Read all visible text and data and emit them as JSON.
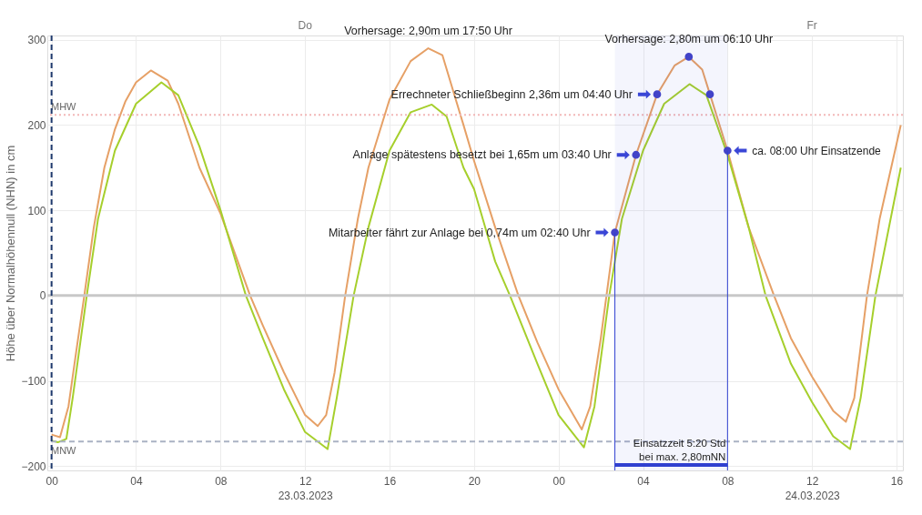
{
  "chart_data": {
    "type": "line",
    "ylabel": "Höhe über Normalhöhennull (NHN) in cm",
    "xlim": [
      "2023-03-22T23:48",
      "2023-03-24T16:18"
    ],
    "ylim": [
      -205,
      305
    ],
    "xticks": [
      {
        "value": "2023-03-23T00:00",
        "label": "00"
      },
      {
        "value": "2023-03-23T04:00",
        "label": "04"
      },
      {
        "value": "2023-03-23T08:00",
        "label": "08"
      },
      {
        "value": "2023-03-23T12:00",
        "label": "12\n23.03.2023"
      },
      {
        "value": "2023-03-23T16:00",
        "label": "16"
      },
      {
        "value": "2023-03-23T20:00",
        "label": "20"
      },
      {
        "value": "2023-03-24T00:00",
        "label": "00"
      },
      {
        "value": "2023-03-24T04:00",
        "label": "04"
      },
      {
        "value": "2023-03-24T08:00",
        "label": "08"
      },
      {
        "value": "2023-03-24T12:00",
        "label": "12\n24.03.2023"
      },
      {
        "value": "2023-03-24T16:00",
        "label": "16"
      }
    ],
    "yticks": [
      -200,
      -100,
      0,
      100,
      200,
      300
    ],
    "grid": true,
    "series": [
      {
        "color": "#e6a066",
        "x": [
          "2023-03-23T00:00",
          "2023-03-23T00:24",
          "2023-03-23T00:48",
          "2023-03-23T01:12",
          "2023-03-23T01:33",
          "2023-03-23T02:00",
          "2023-03-23T02:30",
          "2023-03-23T03:00",
          "2023-03-23T03:30",
          "2023-03-23T04:00",
          "2023-03-23T04:42",
          "2023-03-23T05:30",
          "2023-03-23T06:00",
          "2023-03-23T07:00",
          "2023-03-23T08:00",
          "2023-03-23T09:24",
          "2023-03-23T10:00",
          "2023-03-23T11:00",
          "2023-03-23T12:00",
          "2023-03-23T12:36",
          "2023-03-23T13:00",
          "2023-03-23T13:24",
          "2023-03-23T13:54",
          "2023-03-23T14:30",
          "2023-03-23T15:00",
          "2023-03-23T16:00",
          "2023-03-23T17:00",
          "2023-03-23T17:50",
          "2023-03-23T18:30",
          "2023-03-23T19:30",
          "2023-03-23T20:00",
          "2023-03-23T21:00",
          "2023-03-23T22:06",
          "2023-03-23T23:00",
          "2023-03-24T00:00",
          "2023-03-24T01:06",
          "2023-03-24T01:30",
          "2023-03-24T02:00",
          "2023-03-24T02:40",
          "2023-03-24T03:40",
          "2023-03-24T04:40",
          "2023-03-24T05:30",
          "2023-03-24T06:10",
          "2023-03-24T06:48",
          "2023-03-24T07:10",
          "2023-03-24T08:00",
          "2023-03-24T09:00",
          "2023-03-24T10:12",
          "2023-03-24T11:00",
          "2023-03-24T12:00",
          "2023-03-24T13:00",
          "2023-03-24T13:36",
          "2023-03-24T14:00",
          "2023-03-24T14:36",
          "2023-03-24T15:12",
          "2023-03-24T16:12"
        ],
        "values": [
          -163,
          -166,
          -130,
          -60,
          0,
          80,
          150,
          195,
          228,
          250,
          264,
          252,
          225,
          150,
          96,
          0,
          -35,
          -90,
          -140,
          -153,
          -140,
          -90,
          0,
          90,
          150,
          230,
          275,
          290,
          282,
          200,
          158,
          80,
          0,
          -55,
          -110,
          -157,
          -130,
          -50,
          74,
          165,
          236,
          270,
          280,
          265,
          236,
          170,
          80,
          0,
          -50,
          -95,
          -135,
          -148,
          -120,
          0,
          90,
          200
        ]
      },
      {
        "color": "#a6cf2c",
        "x": [
          "2023-03-23T00:00",
          "2023-03-23T00:18",
          "2023-03-23T00:42",
          "2023-03-23T01:00",
          "2023-03-23T01:40",
          "2023-03-23T02:12",
          "2023-03-23T03:00",
          "2023-03-23T04:00",
          "2023-03-23T05:12",
          "2023-03-23T06:00",
          "2023-03-23T07:00",
          "2023-03-23T08:00",
          "2023-03-23T09:12",
          "2023-03-23T10:00",
          "2023-03-23T11:00",
          "2023-03-23T12:00",
          "2023-03-23T13:04",
          "2023-03-23T13:30",
          "2023-03-23T14:18",
          "2023-03-23T15:00",
          "2023-03-23T16:00",
          "2023-03-23T17:00",
          "2023-03-23T18:00",
          "2023-03-23T18:42",
          "2023-03-23T19:30",
          "2023-03-23T20:00",
          "2023-03-23T21:00",
          "2023-03-23T21:42",
          "2023-03-23T23:00",
          "2023-03-24T00:00",
          "2023-03-24T01:12",
          "2023-03-24T01:42",
          "2023-03-24T02:24",
          "2023-03-24T03:00",
          "2023-03-24T04:00",
          "2023-03-24T05:00",
          "2023-03-24T06:12",
          "2023-03-24T07:00",
          "2023-03-24T08:00",
          "2023-03-24T09:00",
          "2023-03-24T09:48",
          "2023-03-24T11:00",
          "2023-03-24T12:00",
          "2023-03-24T13:00",
          "2023-03-24T13:48",
          "2023-03-24T14:18",
          "2023-03-24T15:00",
          "2023-03-24T16:12"
        ],
        "values": [
          -170,
          -172,
          -168,
          -120,
          0,
          90,
          170,
          225,
          250,
          235,
          175,
          100,
          0,
          -50,
          -110,
          -160,
          -180,
          -120,
          0,
          80,
          170,
          215,
          224,
          210,
          150,
          125,
          40,
          0,
          -80,
          -140,
          -178,
          -130,
          0,
          90,
          170,
          225,
          248,
          235,
          165,
          80,
          0,
          -80,
          -125,
          -165,
          -180,
          -120,
          0,
          150
        ]
      },
      {
        "type": "scatter",
        "color": "#4444c8",
        "marker": "circle",
        "x": [
          "2023-03-24T02:40",
          "2023-03-24T03:40",
          "2023-03-24T04:40",
          "2023-03-24T06:10",
          "2023-03-24T07:10",
          "2023-03-24T08:00"
        ],
        "values": [
          74,
          165,
          236,
          280,
          236,
          170
        ]
      }
    ],
    "ref_lines": [
      {
        "axis": "y",
        "value": 0,
        "color": "#c8c8c8",
        "line_style": "solid"
      },
      {
        "axis": "y",
        "value": 212,
        "label": "MHW",
        "color": "#f2b8b8",
        "line_style": "dotted"
      },
      {
        "axis": "y",
        "value": -171,
        "label": "MNW",
        "color": "#aab2c4",
        "line_style": "dashed"
      },
      {
        "axis": "x",
        "value": "2023-03-23T00:00",
        "color": "#1f3a6e",
        "line_style": "dashed"
      }
    ],
    "bands": [
      {
        "axis": "x",
        "from": "2023-03-24T02:40",
        "to": "2023-03-24T08:00",
        "label": "Einsatzzeit 5:20 Std\nbei max. 2,80mNN",
        "color": "#3040d0"
      }
    ],
    "annotations": [
      {
        "text": "Vorhersage: 2,90m um 17:50 Uhr",
        "x": "2023-03-23T17:50",
        "y": 290
      },
      {
        "text": "Vorhersage: 2,80m um 06:10 Uhr",
        "x": "2023-03-24T06:10",
        "y": 280
      },
      {
        "text": "Errechneter Schließbeginn 2,36m um 04:40 Uhr",
        "x": "2023-03-24T04:40",
        "y": 236
      },
      {
        "text": "Anlage spätestens besetzt bei 1,65m um 03:40 Uhr",
        "x": "2023-03-24T03:40",
        "y": 165
      },
      {
        "text": "Mitarbeiter fährt zur Anlage bei 0,74m um 02:40 Uhr",
        "x": "2023-03-24T02:40",
        "y": 74
      },
      {
        "text": "ca. 08:00 Uhr Einsatzende",
        "x": "2023-03-24T08:00",
        "y": 170
      },
      "Do",
      "Fr"
    ]
  }
}
